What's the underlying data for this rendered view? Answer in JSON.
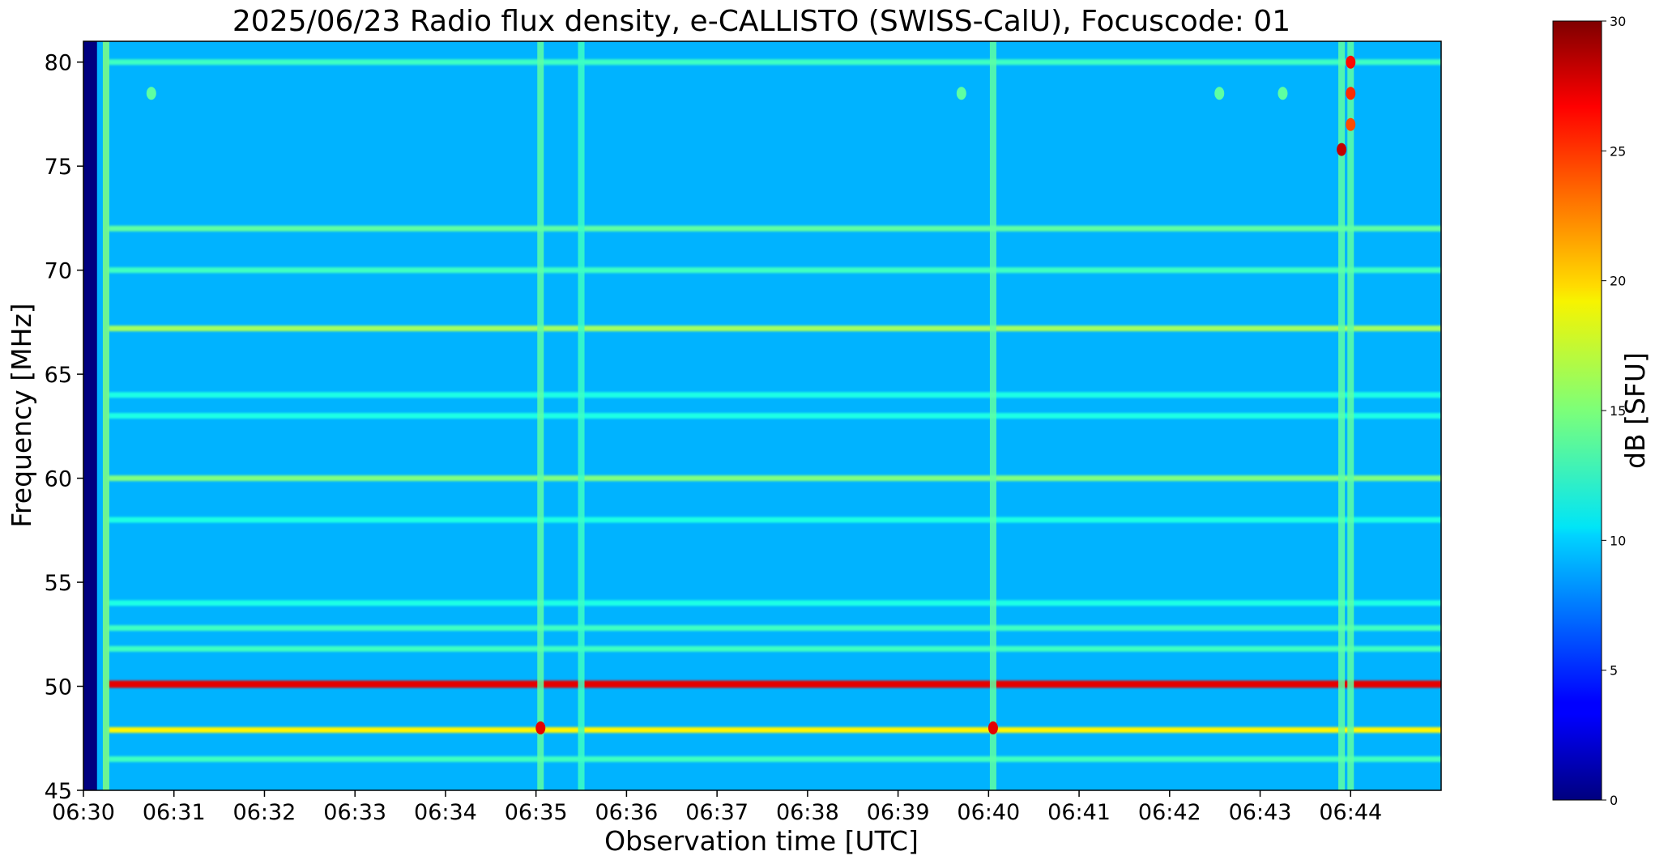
{
  "chart_data": {
    "type": "heatmap",
    "title": "2025/06/23  Radio flux density, e-CALLISTO (SWISS-CalU), Focuscode: 01",
    "xlabel": "Observation time [UTC]",
    "ylabel": "Frequency [MHz]",
    "colorbar_label": "dB [SFU]",
    "colormap": "jet",
    "x_range_minutes": [
      0,
      15
    ],
    "x_ticks": [
      "06:30",
      "06:31",
      "06:32",
      "06:33",
      "06:34",
      "06:35",
      "06:36",
      "06:37",
      "06:38",
      "06:39",
      "06:40",
      "06:41",
      "06:42",
      "06:43",
      "06:44"
    ],
    "ylim": [
      45,
      81
    ],
    "y_ticks": [
      45,
      50,
      55,
      60,
      65,
      70,
      75,
      80
    ],
    "clim": [
      0,
      30
    ],
    "colorbar_ticks": [
      0,
      5,
      10,
      15,
      20,
      25,
      30
    ],
    "background_level": 9,
    "data_start_minute": 0.15,
    "horizontal_bands": [
      {
        "freq": 80.0,
        "level": 13
      },
      {
        "freq": 72.0,
        "level": 14
      },
      {
        "freq": 70.0,
        "level": 13
      },
      {
        "freq": 67.2,
        "level": 16
      },
      {
        "freq": 64.0,
        "level": 12
      },
      {
        "freq": 63.0,
        "level": 12
      },
      {
        "freq": 60.0,
        "level": 15
      },
      {
        "freq": 58.0,
        "level": 12
      },
      {
        "freq": 54.0,
        "level": 12
      },
      {
        "freq": 52.8,
        "level": 13
      },
      {
        "freq": 51.8,
        "level": 13
      },
      {
        "freq": 50.1,
        "level": 27
      },
      {
        "freq": 47.9,
        "level": 19
      },
      {
        "freq": 46.5,
        "level": 13
      }
    ],
    "vertical_features": [
      {
        "time_minute": 0.25,
        "level": 15
      },
      {
        "time_minute": 5.05,
        "level": 14
      },
      {
        "time_minute": 5.5,
        "level": 13
      },
      {
        "time_minute": 10.05,
        "level": 14
      },
      {
        "time_minute": 13.9,
        "level": 14
      },
      {
        "time_minute": 14.0,
        "level": 14
      }
    ],
    "hot_spots": [
      {
        "time_minute": 5.05,
        "freq": 48.0,
        "level": 27
      },
      {
        "time_minute": 10.05,
        "freq": 48.0,
        "level": 27
      },
      {
        "time_minute": 13.9,
        "freq": 75.8,
        "level": 28
      },
      {
        "time_minute": 14.0,
        "freq": 80.0,
        "level": 26
      },
      {
        "time_minute": 14.0,
        "freq": 78.5,
        "level": 25
      },
      {
        "time_minute": 14.0,
        "freq": 77.0,
        "level": 24
      },
      {
        "time_minute": 0.75,
        "freq": 78.5,
        "level": 14
      },
      {
        "time_minute": 9.7,
        "freq": 78.5,
        "level": 14
      },
      {
        "time_minute": 12.55,
        "freq": 78.5,
        "level": 14
      },
      {
        "time_minute": 13.25,
        "freq": 78.5,
        "level": 14
      }
    ]
  }
}
